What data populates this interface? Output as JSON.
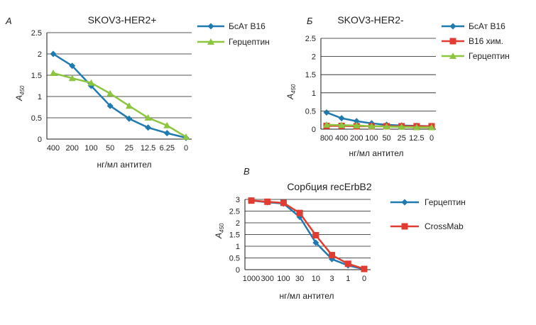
{
  "chart_data": [
    {
      "type": "line",
      "panel": "А",
      "title": "SKOV3-HER2+",
      "xlabel": "нг/мл антител",
      "ylabel": "A",
      "ylabel_sub": "450",
      "categories": [
        "400",
        "200",
        "100",
        "50",
        "25",
        "12.5",
        "6.25",
        "0"
      ],
      "ylim": [
        0,
        2.5
      ],
      "yticks": [
        "0",
        "0.5",
        "1",
        "1.5",
        "2",
        "2.5"
      ],
      "grid": true,
      "legend": "right",
      "series": [
        {
          "name": "БсАт B16",
          "color": "#1f7ab0",
          "marker": "diamond",
          "values": [
            2.0,
            1.72,
            1.25,
            0.78,
            0.48,
            0.27,
            0.14,
            0.03
          ]
        },
        {
          "name": "Герцептин",
          "color": "#8cc63f",
          "marker": "triangle",
          "values": [
            1.55,
            1.43,
            1.32,
            1.07,
            0.78,
            0.5,
            0.32,
            0.05
          ]
        }
      ]
    },
    {
      "type": "line",
      "panel": "Б",
      "title": "SKOV3-HER2-",
      "xlabel": "нг/мл антител",
      "ylabel": "A",
      "ylabel_sub": "450",
      "categories": [
        "800",
        "400",
        "200",
        "100",
        "50",
        "25",
        "12.5",
        "0"
      ],
      "ylim": [
        0,
        2.5
      ],
      "yticks": [
        "0",
        "0.5",
        "1",
        "1.5",
        "2",
        "2.5"
      ],
      "grid": true,
      "legend": "right",
      "series": [
        {
          "name": "БсАт B16",
          "color": "#1f7ab0",
          "marker": "diamond",
          "values": [
            0.46,
            0.3,
            0.22,
            0.16,
            0.12,
            0.1,
            0.09,
            0.08
          ]
        },
        {
          "name": "B16 хим.",
          "color": "#e03c31",
          "marker": "square",
          "values": [
            0.09,
            0.09,
            0.08,
            0.08,
            0.08,
            0.08,
            0.08,
            0.08
          ]
        },
        {
          "name": "Герцептин",
          "color": "#8cc63f",
          "marker": "triangle",
          "values": [
            0.12,
            0.11,
            0.1,
            0.08,
            0.07,
            0.06,
            0.05,
            0.05
          ]
        }
      ]
    },
    {
      "type": "line",
      "panel": "В",
      "title": "Сорбция recErbB2",
      "xlabel": "нг/мл антител",
      "ylabel": "A",
      "ylabel_sub": "450",
      "categories": [
        "1000",
        "300",
        "100",
        "30",
        "10",
        "3",
        "1",
        "0"
      ],
      "ylim": [
        0,
        3
      ],
      "yticks": [
        "0",
        "0.5",
        "1",
        "1.5",
        "2",
        "2.5",
        "3"
      ],
      "grid": true,
      "legend": "right",
      "series": [
        {
          "name": "Герцептин",
          "color": "#1f7ab0",
          "marker": "diamond",
          "values": [
            2.95,
            2.88,
            2.82,
            2.25,
            1.15,
            0.45,
            0.18,
            0.02
          ]
        },
        {
          "name": "CrossMab",
          "color": "#e03c31",
          "marker": "square",
          "values": [
            2.95,
            2.9,
            2.85,
            2.42,
            1.47,
            0.62,
            0.25,
            0.03
          ]
        }
      ]
    }
  ]
}
